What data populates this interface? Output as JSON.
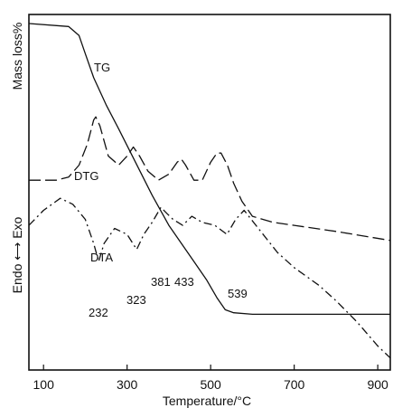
{
  "chart_data": {
    "type": "line",
    "xlabel": "Temperature/°C",
    "ylabel": "Mass loss%",
    "ylabel_secondary": "Endo ⟷ Exo",
    "xlim": [
      65,
      930
    ],
    "x_ticks": [
      100,
      300,
      500,
      700,
      900
    ],
    "grid": false,
    "curve_labels": [
      "TG",
      "DTG",
      "DTA"
    ],
    "peak_labels": [
      {
        "label": "232",
        "x": 232
      },
      {
        "label": "323",
        "x": 323
      },
      {
        "label": "381",
        "x": 381
      },
      {
        "label": "433",
        "x": 433
      },
      {
        "label": "539",
        "x": 539
      }
    ],
    "series": [
      {
        "name": "TG",
        "style": "solid",
        "x": [
          65,
          160,
          185,
          200,
          220,
          250,
          280,
          320,
          360,
          400,
          430,
          460,
          490,
          515,
          535,
          555,
          600,
          700,
          800,
          930
        ],
        "y": [
          100,
          99,
          96,
          90,
          82,
          73,
          65,
          54,
          43,
          33,
          27,
          21,
          15,
          9,
          5,
          4,
          3.5,
          3.5,
          3.5,
          3.5
        ]
      },
      {
        "name": "DTG",
        "style": "long-dash",
        "x": [
          65,
          130,
          160,
          185,
          205,
          220,
          225,
          235,
          255,
          280,
          300,
          315,
          330,
          350,
          375,
          400,
          420,
          430,
          440,
          460,
          480,
          500,
          515,
          525,
          540,
          555,
          575,
          600,
          650,
          700,
          800,
          930
        ],
        "y": [
          48,
          48,
          49,
          53,
          60,
          68,
          69,
          66,
          56,
          53,
          56,
          59,
          56,
          51,
          48,
          50,
          54,
          55,
          53,
          48,
          48,
          54,
          57,
          57,
          53,
          47,
          41,
          36,
          34,
          33,
          31,
          28
        ]
      },
      {
        "name": "DTA",
        "style": "dash-dot",
        "x": [
          65,
          100,
          140,
          170,
          200,
          220,
          232,
          245,
          270,
          300,
          323,
          340,
          360,
          381,
          395,
          410,
          433,
          455,
          480,
          510,
          539,
          560,
          580,
          620,
          660,
          700,
          760,
          800,
          850,
          900,
          930
        ],
        "y": [
          33,
          38,
          42,
          40,
          35,
          27,
          21,
          27,
          32,
          30,
          25,
          30,
          34,
          39,
          37,
          35,
          33,
          36,
          34,
          33,
          30,
          35,
          38,
          31,
          24,
          19,
          13,
          8,
          1,
          -7,
          -11
        ]
      }
    ]
  }
}
